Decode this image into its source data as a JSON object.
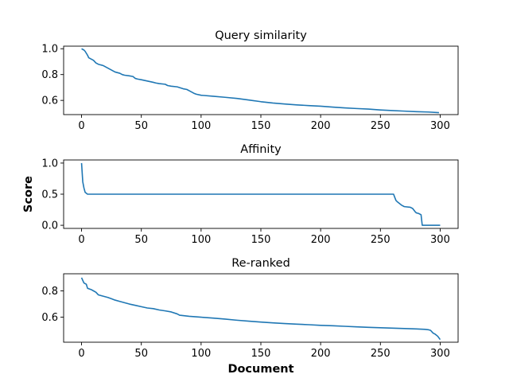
{
  "figure": {
    "ylabel": "Score",
    "xlabel": "Document"
  },
  "chart_data": [
    {
      "type": "line",
      "title": "Query similarity",
      "xlabel": "",
      "ylabel": "",
      "xlim": [
        -15,
        315
      ],
      "ylim": [
        0.49,
        1.02
      ],
      "xticks": [
        0,
        50,
        100,
        150,
        200,
        250,
        300
      ],
      "yticks": [
        0.6,
        0.8,
        1.0
      ],
      "ytick_labels": [
        "0.6",
        "0.8",
        "1.0"
      ],
      "line_color": "#1f77b4",
      "series": [
        {
          "x": [
            0,
            2,
            3,
            5,
            6,
            8,
            10,
            12,
            14,
            18,
            22,
            24,
            26,
            28,
            32,
            34,
            36,
            40,
            43,
            45,
            47,
            50,
            55,
            60,
            62,
            65,
            70,
            72,
            75,
            80,
            85,
            88,
            90,
            92,
            94,
            96,
            100,
            110,
            120,
            130,
            140,
            150,
            160,
            170,
            180,
            190,
            200,
            210,
            220,
            230,
            240,
            250,
            260,
            270,
            280,
            290,
            299
          ],
          "y": [
            1.0,
            0.99,
            0.98,
            0.95,
            0.93,
            0.92,
            0.91,
            0.89,
            0.88,
            0.87,
            0.85,
            0.84,
            0.83,
            0.82,
            0.81,
            0.8,
            0.795,
            0.79,
            0.785,
            0.77,
            0.765,
            0.76,
            0.75,
            0.74,
            0.735,
            0.73,
            0.725,
            0.715,
            0.71,
            0.705,
            0.69,
            0.685,
            0.675,
            0.665,
            0.655,
            0.648,
            0.64,
            0.632,
            0.624,
            0.615,
            0.603,
            0.59,
            0.58,
            0.572,
            0.565,
            0.56,
            0.555,
            0.548,
            0.542,
            0.537,
            0.533,
            0.526,
            0.521,
            0.517,
            0.513,
            0.51,
            0.505
          ]
        }
      ]
    },
    {
      "type": "line",
      "title": "Affinity",
      "xlabel": "",
      "ylabel": "",
      "xlim": [
        -15,
        315
      ],
      "ylim": [
        -0.05,
        1.05
      ],
      "xticks": [
        0,
        50,
        100,
        150,
        200,
        250,
        300
      ],
      "yticks": [
        0.0,
        0.5,
        1.0
      ],
      "ytick_labels": [
        "0.0",
        "0.5",
        "1.0"
      ],
      "line_color": "#1f77b4",
      "series": [
        {
          "x": [
            0,
            1,
            2,
            3,
            5,
            100,
            200,
            261,
            262,
            263,
            264,
            266,
            268,
            270,
            275,
            277,
            279,
            280,
            282,
            284,
            285,
            290,
            295,
            300
          ],
          "y": [
            1.0,
            0.7,
            0.6,
            0.53,
            0.5,
            0.5,
            0.5,
            0.5,
            0.45,
            0.4,
            0.38,
            0.35,
            0.32,
            0.3,
            0.29,
            0.27,
            0.22,
            0.2,
            0.19,
            0.17,
            0.0,
            0.0,
            0.0,
            0.0
          ]
        }
      ]
    },
    {
      "type": "line",
      "title": "Re-ranked",
      "xlabel": "Document",
      "ylabel": "",
      "xlim": [
        -15,
        315
      ],
      "ylim": [
        0.41,
        0.93
      ],
      "xticks": [
        0,
        50,
        100,
        150,
        200,
        250,
        300
      ],
      "yticks": [
        0.6,
        0.8
      ],
      "ytick_labels": [
        "0.6",
        "0.8"
      ],
      "line_color": "#1f77b4",
      "series": [
        {
          "x": [
            0,
            1,
            2,
            4,
            5,
            8,
            10,
            12,
            14,
            18,
            22,
            25,
            28,
            32,
            36,
            40,
            45,
            50,
            55,
            60,
            65,
            70,
            75,
            80,
            82,
            85,
            90,
            100,
            110,
            120,
            130,
            140,
            150,
            160,
            170,
            180,
            190,
            200,
            210,
            220,
            230,
            240,
            250,
            260,
            270,
            280,
            287,
            290,
            292,
            294,
            296,
            298,
            300
          ],
          "y": [
            0.9,
            0.88,
            0.86,
            0.85,
            0.82,
            0.81,
            0.8,
            0.79,
            0.77,
            0.76,
            0.75,
            0.74,
            0.73,
            0.72,
            0.71,
            0.7,
            0.69,
            0.68,
            0.67,
            0.665,
            0.655,
            0.648,
            0.64,
            0.625,
            0.615,
            0.612,
            0.607,
            0.6,
            0.593,
            0.586,
            0.577,
            0.57,
            0.563,
            0.557,
            0.552,
            0.547,
            0.543,
            0.538,
            0.535,
            0.531,
            0.527,
            0.523,
            0.52,
            0.517,
            0.514,
            0.511,
            0.508,
            0.505,
            0.5,
            0.48,
            0.47,
            0.455,
            0.43
          ]
        }
      ]
    }
  ]
}
